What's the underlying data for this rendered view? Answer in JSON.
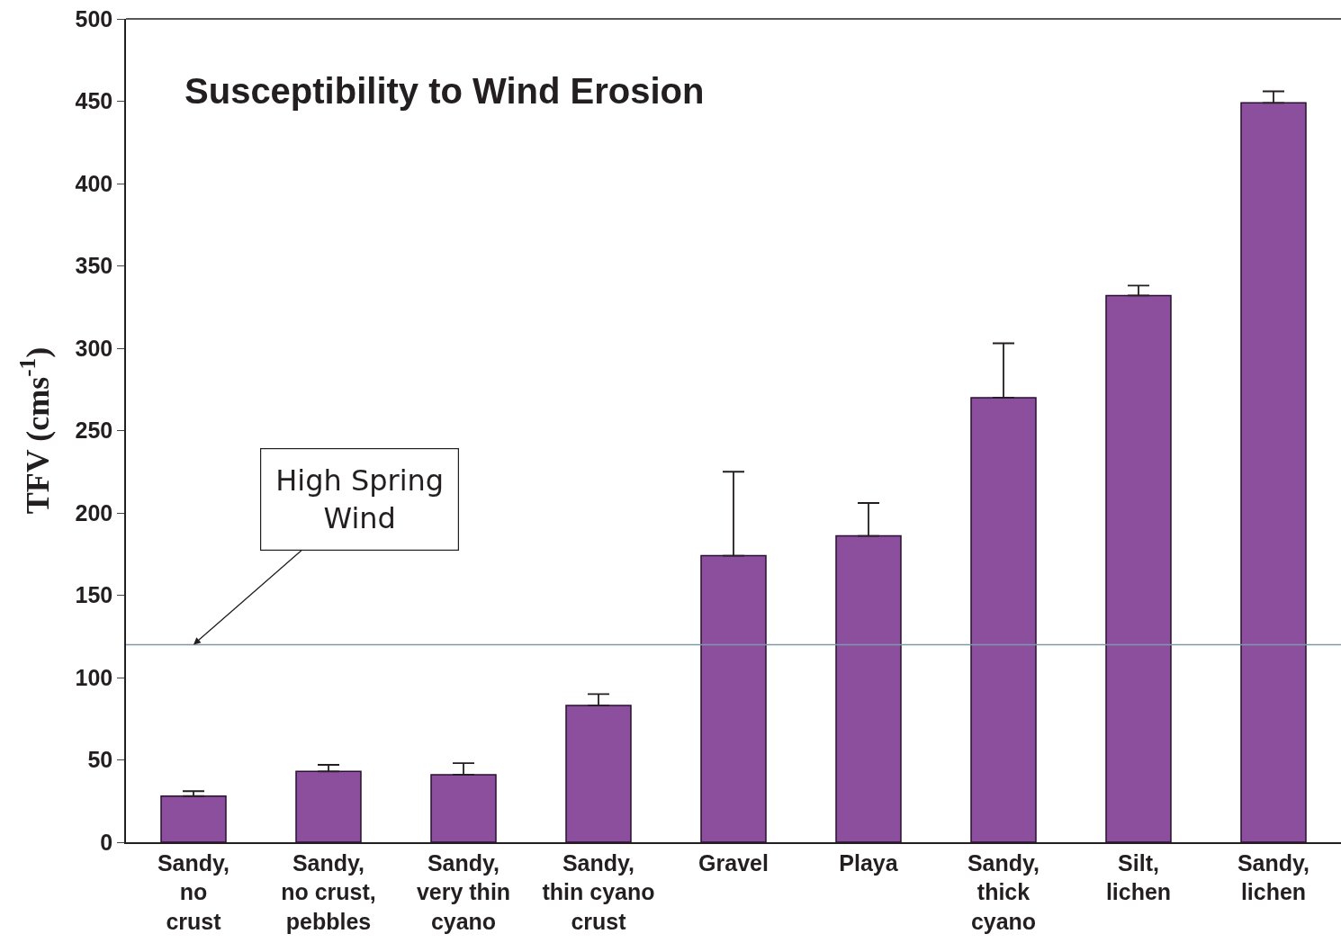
{
  "chart_data": {
    "type": "bar",
    "title": "Susceptibility to Wind Erosion",
    "ylabel": "TFV (cms$^{-1}$)",
    "categories": [
      "Sandy,\nno\ncrust",
      "Sandy,\nno crust,\npebbles",
      "Sandy,\nvery thin\ncyano",
      "Sandy,\nthin cyano\ncrust",
      "Gravel",
      "Playa",
      "Sandy,\nthick\ncyano",
      "Silt,\nlichen",
      "Sandy,\nlichen"
    ],
    "values": [
      28,
      43,
      41,
      83,
      174,
      186,
      270,
      332,
      449
    ],
    "errors": [
      [
        28,
        31
      ],
      [
        43,
        47
      ],
      [
        41,
        48
      ],
      [
        83,
        90
      ],
      [
        174,
        225
      ],
      [
        186,
        206
      ],
      [
        270,
        303
      ],
      [
        332,
        338
      ],
      [
        449,
        456
      ]
    ],
    "color": "#8b4f9e",
    "ylim": [
      0,
      500
    ],
    "yticks": [
      0,
      50,
      100,
      150,
      200,
      250,
      300,
      350,
      400,
      450,
      500
    ],
    "ref_lines": [
      {
        "axis": "y",
        "value": 120,
        "color": "#7f97a8"
      }
    ],
    "annotations": [
      {
        "text": "High Spring\nWind",
        "x": "Sandy,\nno\ncrust",
        "y": 120
      }
    ],
    "grid": false,
    "legend": false
  }
}
